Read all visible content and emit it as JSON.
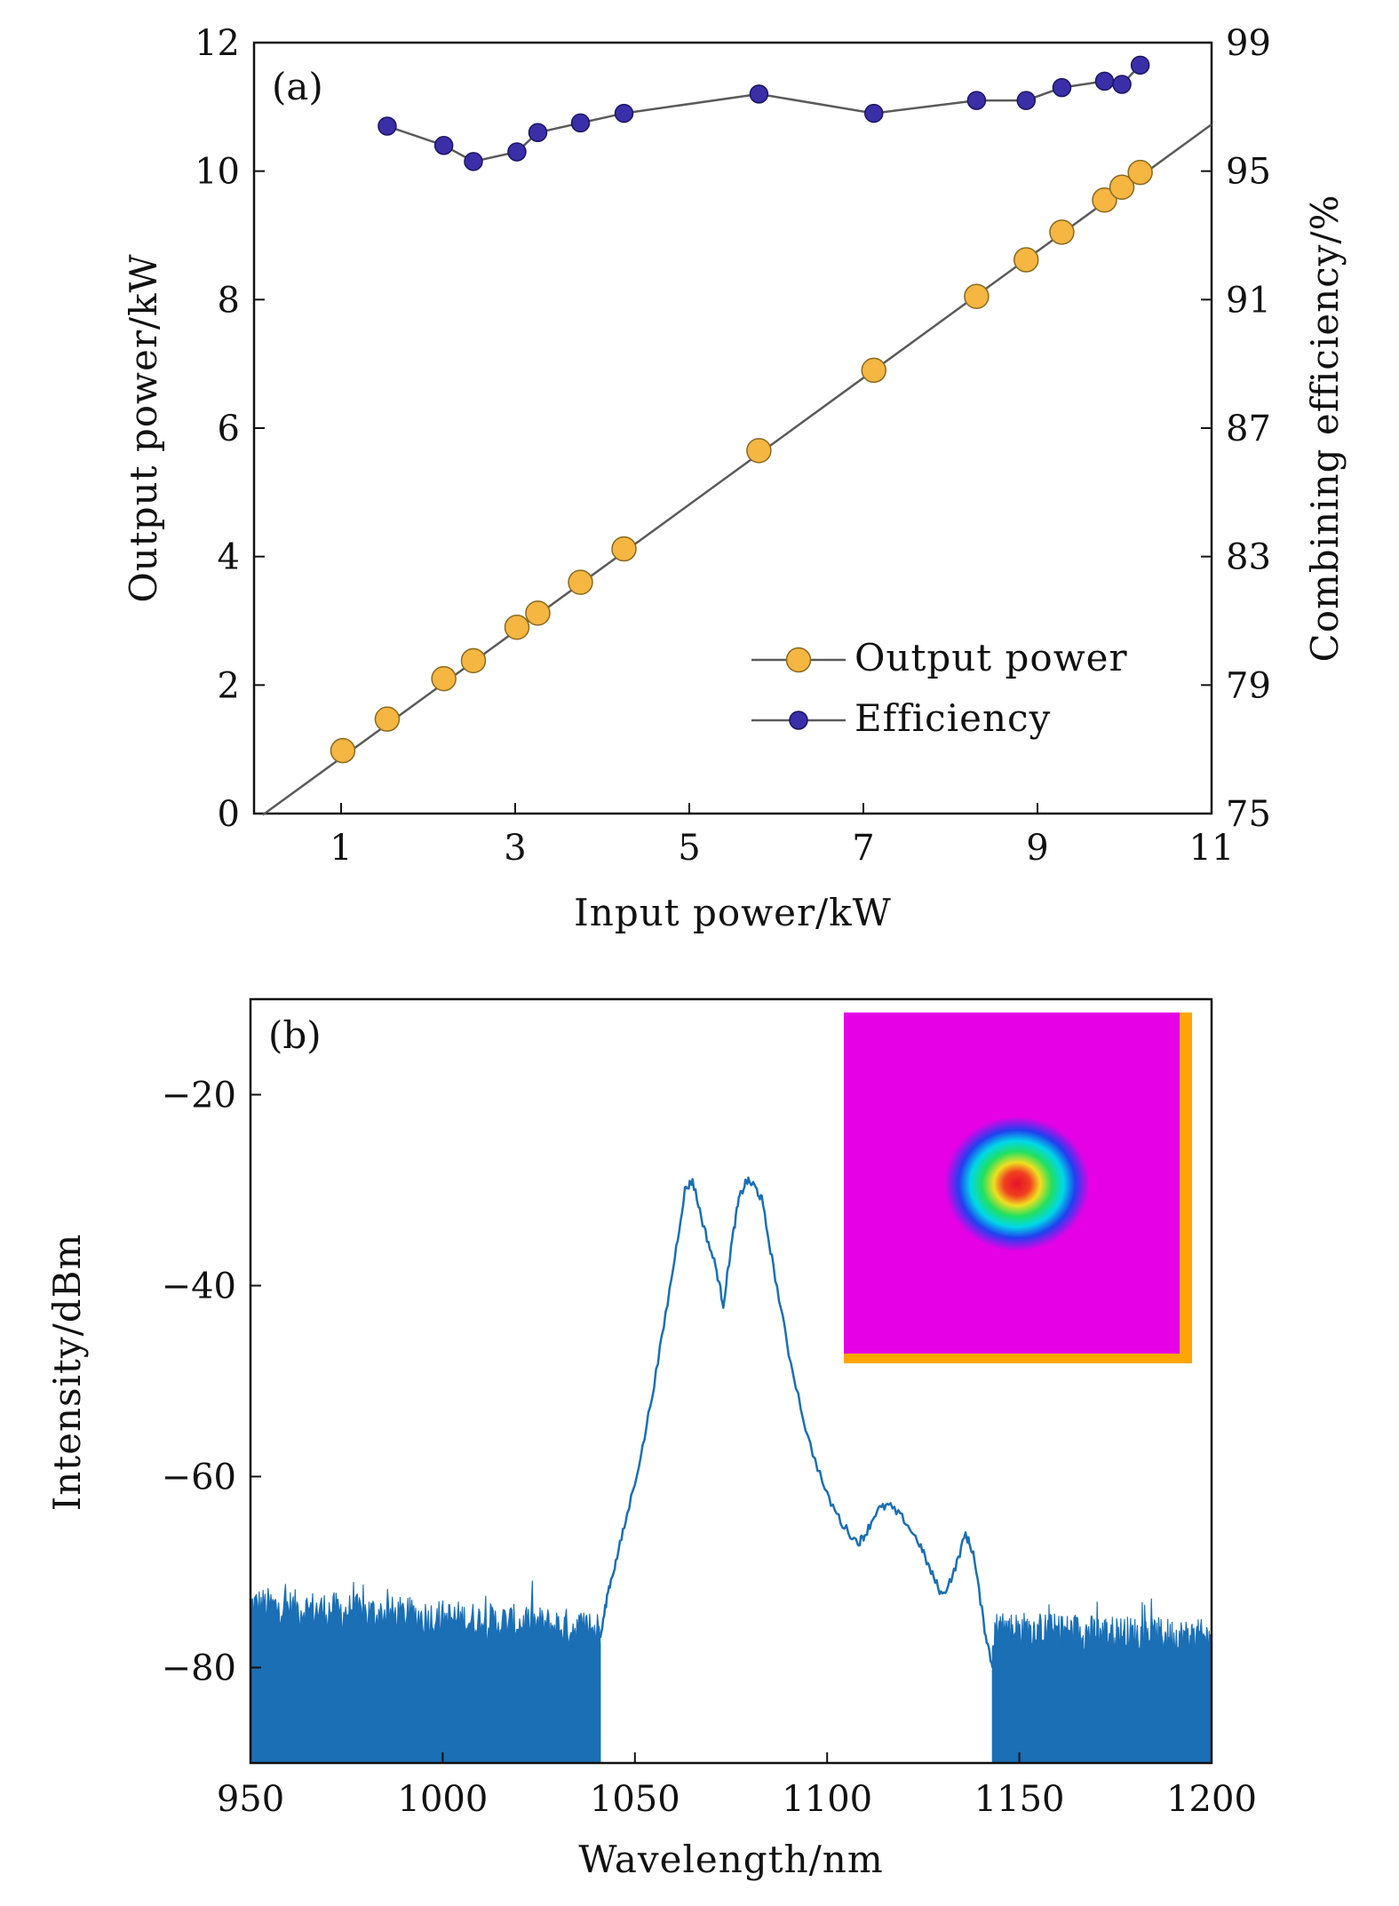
{
  "colors": {
    "output_marker": "#F5B642",
    "output_edge": "#8a6a20",
    "efficiency_marker": "#3A2FA8",
    "efficiency_edge": "#1a1560",
    "fit_line": "#5a5a5a",
    "spectrum": "#1A6FB5",
    "inset_bg": "#E600E6",
    "inset_border": "#FFA500"
  },
  "chart_data": [
    {
      "type": "scatter",
      "panel_label": "(a)",
      "xlabel": "Input power/kW",
      "ylabel": "Output power/kW",
      "y2label": "Combining efficiency/%",
      "xlim": [
        0,
        11
      ],
      "ylim": [
        0,
        12
      ],
      "y2lim": [
        75,
        99
      ],
      "xticks": [
        1,
        3,
        5,
        7,
        9,
        11
      ],
      "yticks": [
        0,
        2,
        4,
        6,
        8,
        10,
        12
      ],
      "y2ticks": [
        75,
        79,
        83,
        87,
        91,
        95,
        99
      ],
      "fit_line": {
        "slope": 0.986,
        "intercept": -0.12,
        "x_range": [
          0.1,
          11
        ]
      },
      "legend_position": "lower-right",
      "series": [
        {
          "name": "Output power",
          "axis": "left",
          "x": [
            1.02,
            1.53,
            2.18,
            2.52,
            3.02,
            3.26,
            3.75,
            4.25,
            5.8,
            7.12,
            8.3,
            8.87,
            9.28,
            9.77,
            9.97,
            10.18
          ],
          "y": [
            0.98,
            1.47,
            2.1,
            2.38,
            2.9,
            3.12,
            3.6,
            4.12,
            5.65,
            6.9,
            8.05,
            8.62,
            9.05,
            9.55,
            9.75,
            9.98
          ]
        },
        {
          "name": "Efficiency",
          "axis": "right",
          "x": [
            1.53,
            2.18,
            2.52,
            3.02,
            3.26,
            3.75,
            4.25,
            5.8,
            7.12,
            8.3,
            8.87,
            9.28,
            9.77,
            9.97,
            10.18
          ],
          "y": [
            96.4,
            95.8,
            95.3,
            95.6,
            96.2,
            96.5,
            96.8,
            97.4,
            96.8,
            97.2,
            97.2,
            97.6,
            97.8,
            97.7,
            98.3
          ]
        }
      ]
    },
    {
      "type": "line",
      "panel_label": "(b)",
      "xlabel": "Wavelength/nm",
      "ylabel": "Intensity/dBm",
      "xlim": [
        950,
        1200
      ],
      "ylim": [
        -90,
        -10
      ],
      "xticks": [
        950,
        1000,
        1050,
        1100,
        1150,
        1200
      ],
      "yticks": [
        -20,
        -40,
        -60,
        -80
      ],
      "ytick_labels": [
        "−20",
        "−40",
        "−60",
        "−80"
      ],
      "noise_floor": {
        "level": -76,
        "left_range": [
          950,
          1041
        ],
        "right_range": [
          1143,
          1200
        ],
        "floor": -90
      },
      "peak_profile": {
        "x": [
          1041,
          1043,
          1045,
          1048,
          1052,
          1056,
          1060,
          1063,
          1065,
          1068,
          1071,
          1073,
          1075,
          1077,
          1079,
          1081,
          1083,
          1086,
          1090,
          1095,
          1100,
          1104,
          1108,
          1110,
          1113,
          1116,
          1120,
          1124,
          1127,
          1130,
          1133,
          1136,
          1138,
          1141,
          1143
        ],
        "y": [
          -77,
          -72,
          -69,
          -64,
          -57,
          -48,
          -38,
          -30,
          -29,
          -34,
          -38,
          -42,
          -36,
          -31,
          -29,
          -29.5,
          -31,
          -38,
          -47,
          -56,
          -62,
          -65,
          -67,
          -66,
          -63.5,
          -63,
          -64.5,
          -67,
          -70,
          -72.5,
          -70,
          -66,
          -68,
          -76,
          -80
        ]
      },
      "inset": {
        "description_none": true
      }
    }
  ]
}
